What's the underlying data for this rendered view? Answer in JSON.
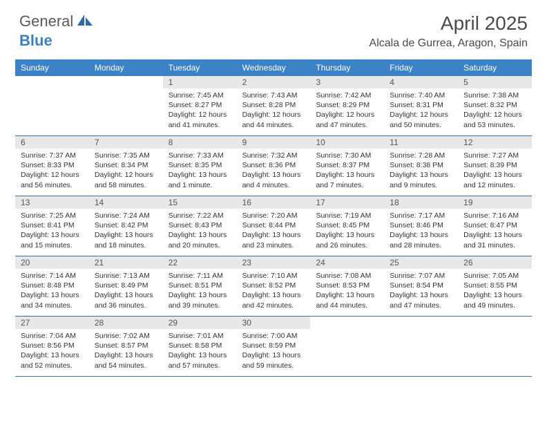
{
  "logo": {
    "text1": "General",
    "text2": "Blue"
  },
  "title": "April 2025",
  "location": "Alcala de Gurrea, Aragon, Spain",
  "colors": {
    "header_bg": "#3b82c7",
    "header_text": "#ffffff",
    "daynum_bg": "#e8e8e8",
    "border": "#3b6fa0",
    "logo_gray": "#5a5a5a",
    "logo_blue": "#3b7fc4"
  },
  "day_headers": [
    "Sunday",
    "Monday",
    "Tuesday",
    "Wednesday",
    "Thursday",
    "Friday",
    "Saturday"
  ],
  "weeks": [
    [
      {
        "num": "",
        "sunrise": "",
        "sunset": "",
        "daylight": ""
      },
      {
        "num": "",
        "sunrise": "",
        "sunset": "",
        "daylight": ""
      },
      {
        "num": "1",
        "sunrise": "Sunrise: 7:45 AM",
        "sunset": "Sunset: 8:27 PM",
        "daylight": "Daylight: 12 hours and 41 minutes."
      },
      {
        "num": "2",
        "sunrise": "Sunrise: 7:43 AM",
        "sunset": "Sunset: 8:28 PM",
        "daylight": "Daylight: 12 hours and 44 minutes."
      },
      {
        "num": "3",
        "sunrise": "Sunrise: 7:42 AM",
        "sunset": "Sunset: 8:29 PM",
        "daylight": "Daylight: 12 hours and 47 minutes."
      },
      {
        "num": "4",
        "sunrise": "Sunrise: 7:40 AM",
        "sunset": "Sunset: 8:31 PM",
        "daylight": "Daylight: 12 hours and 50 minutes."
      },
      {
        "num": "5",
        "sunrise": "Sunrise: 7:38 AM",
        "sunset": "Sunset: 8:32 PM",
        "daylight": "Daylight: 12 hours and 53 minutes."
      }
    ],
    [
      {
        "num": "6",
        "sunrise": "Sunrise: 7:37 AM",
        "sunset": "Sunset: 8:33 PM",
        "daylight": "Daylight: 12 hours and 56 minutes."
      },
      {
        "num": "7",
        "sunrise": "Sunrise: 7:35 AM",
        "sunset": "Sunset: 8:34 PM",
        "daylight": "Daylight: 12 hours and 58 minutes."
      },
      {
        "num": "8",
        "sunrise": "Sunrise: 7:33 AM",
        "sunset": "Sunset: 8:35 PM",
        "daylight": "Daylight: 13 hours and 1 minute."
      },
      {
        "num": "9",
        "sunrise": "Sunrise: 7:32 AM",
        "sunset": "Sunset: 8:36 PM",
        "daylight": "Daylight: 13 hours and 4 minutes."
      },
      {
        "num": "10",
        "sunrise": "Sunrise: 7:30 AM",
        "sunset": "Sunset: 8:37 PM",
        "daylight": "Daylight: 13 hours and 7 minutes."
      },
      {
        "num": "11",
        "sunrise": "Sunrise: 7:28 AM",
        "sunset": "Sunset: 8:38 PM",
        "daylight": "Daylight: 13 hours and 9 minutes."
      },
      {
        "num": "12",
        "sunrise": "Sunrise: 7:27 AM",
        "sunset": "Sunset: 8:39 PM",
        "daylight": "Daylight: 13 hours and 12 minutes."
      }
    ],
    [
      {
        "num": "13",
        "sunrise": "Sunrise: 7:25 AM",
        "sunset": "Sunset: 8:41 PM",
        "daylight": "Daylight: 13 hours and 15 minutes."
      },
      {
        "num": "14",
        "sunrise": "Sunrise: 7:24 AM",
        "sunset": "Sunset: 8:42 PM",
        "daylight": "Daylight: 13 hours and 18 minutes."
      },
      {
        "num": "15",
        "sunrise": "Sunrise: 7:22 AM",
        "sunset": "Sunset: 8:43 PM",
        "daylight": "Daylight: 13 hours and 20 minutes."
      },
      {
        "num": "16",
        "sunrise": "Sunrise: 7:20 AM",
        "sunset": "Sunset: 8:44 PM",
        "daylight": "Daylight: 13 hours and 23 minutes."
      },
      {
        "num": "17",
        "sunrise": "Sunrise: 7:19 AM",
        "sunset": "Sunset: 8:45 PM",
        "daylight": "Daylight: 13 hours and 26 minutes."
      },
      {
        "num": "18",
        "sunrise": "Sunrise: 7:17 AM",
        "sunset": "Sunset: 8:46 PM",
        "daylight": "Daylight: 13 hours and 28 minutes."
      },
      {
        "num": "19",
        "sunrise": "Sunrise: 7:16 AM",
        "sunset": "Sunset: 8:47 PM",
        "daylight": "Daylight: 13 hours and 31 minutes."
      }
    ],
    [
      {
        "num": "20",
        "sunrise": "Sunrise: 7:14 AM",
        "sunset": "Sunset: 8:48 PM",
        "daylight": "Daylight: 13 hours and 34 minutes."
      },
      {
        "num": "21",
        "sunrise": "Sunrise: 7:13 AM",
        "sunset": "Sunset: 8:49 PM",
        "daylight": "Daylight: 13 hours and 36 minutes."
      },
      {
        "num": "22",
        "sunrise": "Sunrise: 7:11 AM",
        "sunset": "Sunset: 8:51 PM",
        "daylight": "Daylight: 13 hours and 39 minutes."
      },
      {
        "num": "23",
        "sunrise": "Sunrise: 7:10 AM",
        "sunset": "Sunset: 8:52 PM",
        "daylight": "Daylight: 13 hours and 42 minutes."
      },
      {
        "num": "24",
        "sunrise": "Sunrise: 7:08 AM",
        "sunset": "Sunset: 8:53 PM",
        "daylight": "Daylight: 13 hours and 44 minutes."
      },
      {
        "num": "25",
        "sunrise": "Sunrise: 7:07 AM",
        "sunset": "Sunset: 8:54 PM",
        "daylight": "Daylight: 13 hours and 47 minutes."
      },
      {
        "num": "26",
        "sunrise": "Sunrise: 7:05 AM",
        "sunset": "Sunset: 8:55 PM",
        "daylight": "Daylight: 13 hours and 49 minutes."
      }
    ],
    [
      {
        "num": "27",
        "sunrise": "Sunrise: 7:04 AM",
        "sunset": "Sunset: 8:56 PM",
        "daylight": "Daylight: 13 hours and 52 minutes."
      },
      {
        "num": "28",
        "sunrise": "Sunrise: 7:02 AM",
        "sunset": "Sunset: 8:57 PM",
        "daylight": "Daylight: 13 hours and 54 minutes."
      },
      {
        "num": "29",
        "sunrise": "Sunrise: 7:01 AM",
        "sunset": "Sunset: 8:58 PM",
        "daylight": "Daylight: 13 hours and 57 minutes."
      },
      {
        "num": "30",
        "sunrise": "Sunrise: 7:00 AM",
        "sunset": "Sunset: 8:59 PM",
        "daylight": "Daylight: 13 hours and 59 minutes."
      },
      {
        "num": "",
        "sunrise": "",
        "sunset": "",
        "daylight": ""
      },
      {
        "num": "",
        "sunrise": "",
        "sunset": "",
        "daylight": ""
      },
      {
        "num": "",
        "sunrise": "",
        "sunset": "",
        "daylight": ""
      }
    ]
  ]
}
